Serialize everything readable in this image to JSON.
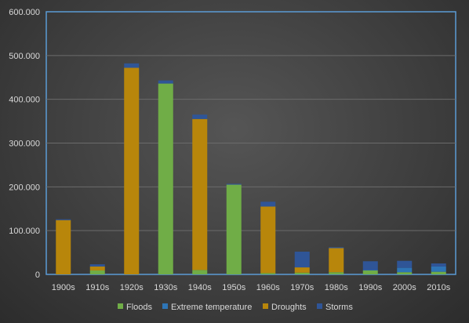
{
  "chart_data": {
    "type": "bar",
    "stacked": true,
    "categories": [
      "1900s",
      "1910s",
      "1920s",
      "1930s",
      "1940s",
      "1950s",
      "1960s",
      "1970s",
      "1980s",
      "1990s",
      "2000s",
      "2010s"
    ],
    "series": [
      {
        "name": "Floods",
        "color": "#70ad47",
        "values": [
          0,
          9000,
          0,
          436000,
          10000,
          205000,
          3000,
          4000,
          5000,
          9000,
          5000,
          6000
        ]
      },
      {
        "name": "Extreme temperature",
        "color": "#2e75b6",
        "values": [
          0,
          0,
          0,
          0,
          0,
          0,
          0,
          0,
          0,
          1000,
          10000,
          12000
        ]
      },
      {
        "name": "Droughts",
        "color": "#b8860b",
        "values": [
          124000,
          9000,
          472000,
          0,
          345000,
          0,
          152000,
          12000,
          55000,
          0,
          0,
          0
        ]
      },
      {
        "name": "Storms",
        "color": "#2f5597",
        "values": [
          2000,
          5000,
          10000,
          7000,
          10000,
          2000,
          11000,
          36000,
          2000,
          20000,
          16000,
          7000
        ]
      }
    ],
    "yticks": [
      "0",
      "100.000",
      "200.000",
      "300.000",
      "400.000",
      "500.000",
      "600.000"
    ],
    "ylim": [
      0,
      600000
    ],
    "grid": true,
    "legend": "bottom"
  }
}
